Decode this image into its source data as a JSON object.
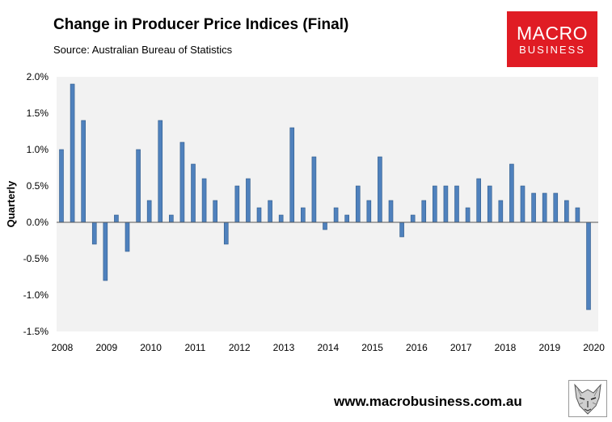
{
  "header": {
    "title": "Change in Producer Price Indices (Final)",
    "source": "Source:  Australian Bureau of Statistics"
  },
  "logo": {
    "line1": "MACRO",
    "line2": "BUSINESS",
    "color": "#e01c24"
  },
  "footer": {
    "url": "www.macrobusiness.com.au",
    "icon": "wolf-icon"
  },
  "chart_data": {
    "type": "bar",
    "title": "Change in Producer Price Indices (Final)",
    "ylabel": "Quarterly",
    "xlabel": "",
    "ylim": [
      -1.5,
      2.0
    ],
    "yticks": [
      "2.0%",
      "1.5%",
      "1.0%",
      "0.5%",
      "0.0%",
      "-0.5%",
      "-1.0%",
      "-1.5%"
    ],
    "ytick_values": [
      2.0,
      1.5,
      1.0,
      0.5,
      0.0,
      -0.5,
      -1.0,
      -1.5
    ],
    "xtick_labels": [
      "2008",
      "2009",
      "2010",
      "2011",
      "2012",
      "2013",
      "2014",
      "2015",
      "2016",
      "2017",
      "2018",
      "2019",
      "2020"
    ],
    "grid": false,
    "bar_color": "#4f81bd",
    "plot_background": "#f2f2f2",
    "series": [
      {
        "values": [
          1.0,
          1.9,
          1.4,
          -0.3,
          -0.8,
          0.1,
          -0.4,
          1.0,
          0.3,
          1.4,
          0.1,
          1.1,
          0.8,
          0.6,
          0.3,
          -0.3,
          0.5,
          0.6,
          0.2,
          0.3,
          0.1,
          1.3,
          0.2,
          0.9,
          -0.1,
          0.2,
          0.1,
          0.5,
          0.3,
          0.9,
          0.3,
          -0.2,
          0.1,
          0.3,
          0.5,
          0.5,
          0.5,
          0.2,
          0.6,
          0.5,
          0.3,
          0.8,
          0.5,
          0.4,
          0.4,
          0.4,
          0.3,
          0.2,
          -1.2
        ]
      }
    ]
  }
}
